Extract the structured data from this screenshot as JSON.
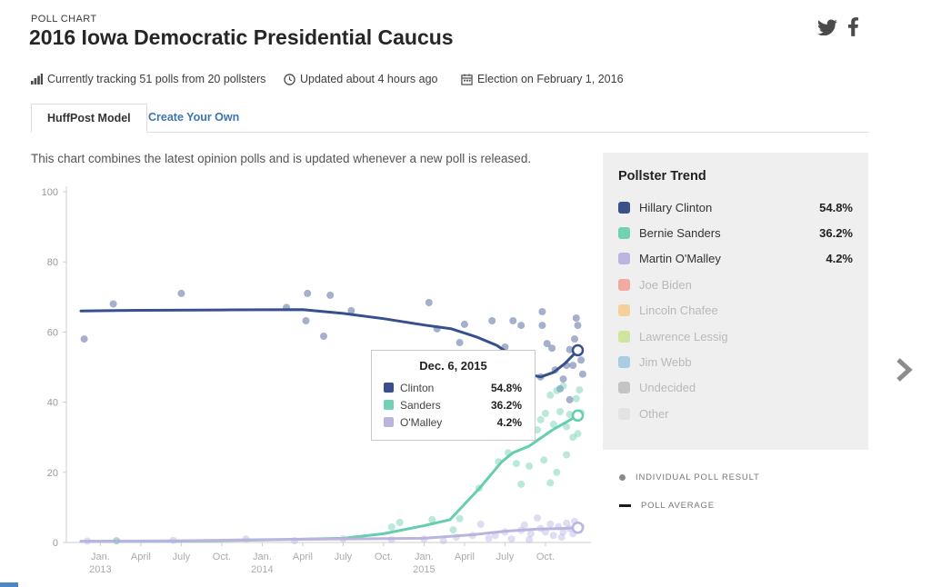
{
  "page": {
    "label": "POLL CHART",
    "title": "2016 Iowa Democratic Presidential Caucus"
  },
  "social": {
    "icons": [
      "twitter",
      "facebook"
    ]
  },
  "meta": [
    {
      "icon": "bar-chart-icon",
      "text": "Currently tracking 51 polls from 20 pollsters"
    },
    {
      "icon": "clock-icon",
      "text": "Updated about 4 hours ago"
    },
    {
      "icon": "calendar-icon",
      "text": "Election on February 1, 2016"
    }
  ],
  "tabs": [
    {
      "label": "HuffPost Model",
      "active": true
    },
    {
      "label": "Create Your Own",
      "active": false
    }
  ],
  "description": "This chart combines the latest opinion polls and is updated whenever a new poll is released.",
  "sidebar": {
    "title": "Pollster Trend",
    "entries": [
      {
        "label": "Hillary Clinton",
        "value": "54.8%",
        "color": "#3b508a",
        "active": true
      },
      {
        "label": "Bernie Sanders",
        "value": "36.2%",
        "color": "#72d1b4",
        "active": true
      },
      {
        "label": "Martin O'Malley",
        "value": "4.2%",
        "color": "#b9b4e0",
        "active": true
      },
      {
        "label": "Joe Biden",
        "value": "",
        "color": "#f2a9a2",
        "active": false
      },
      {
        "label": "Lincoln Chafee",
        "value": "",
        "color": "#f5cf9c",
        "active": false
      },
      {
        "label": "Lawrence Lessig",
        "value": "",
        "color": "#cfe49c",
        "active": false
      },
      {
        "label": "Jim Webb",
        "value": "",
        "color": "#a9cee3",
        "active": false
      },
      {
        "label": "Undecided",
        "value": "",
        "color": "#c4c4c4",
        "active": false
      },
      {
        "label": "Other",
        "value": "",
        "color": "#e3e3e3",
        "active": false
      }
    ]
  },
  "chart_notes": [
    {
      "marker": "dot",
      "label": "INDIVIDUAL POLL RESULT"
    },
    {
      "marker": "dash",
      "label": "POLL AVERAGE"
    }
  ],
  "tooltip": {
    "title": "Dec. 6, 2015",
    "rows": [
      {
        "label": "Clinton",
        "value": "54.8%",
        "color": "#3b508a"
      },
      {
        "label": "Sanders",
        "value": "36.2%",
        "color": "#72d1b4"
      },
      {
        "label": "O'Malley",
        "value": "4.2%",
        "color": "#b9b4e0"
      }
    ]
  },
  "chart_data": {
    "type": "line",
    "title": "",
    "xlabel": "",
    "ylabel": "",
    "x_range": [
      2012.79,
      2016.02
    ],
    "y_range": [
      0,
      100
    ],
    "y_ticks": [
      0,
      20,
      40,
      60,
      80,
      100
    ],
    "x_ticks": [
      {
        "t": 2013.0,
        "label": "Jan.",
        "year": "2013"
      },
      {
        "t": 2013.25,
        "label": "April",
        "year": ""
      },
      {
        "t": 2013.5,
        "label": "July",
        "year": ""
      },
      {
        "t": 2013.75,
        "label": "Oct.",
        "year": ""
      },
      {
        "t": 2014.0,
        "label": "Jan.",
        "year": "2014"
      },
      {
        "t": 2014.25,
        "label": "April",
        "year": ""
      },
      {
        "t": 2014.5,
        "label": "July",
        "year": ""
      },
      {
        "t": 2014.75,
        "label": "Oct.",
        "year": ""
      },
      {
        "t": 2015.0,
        "label": "Jan.",
        "year": "2015"
      },
      {
        "t": 2015.25,
        "label": "April",
        "year": ""
      },
      {
        "t": 2015.5,
        "label": "July",
        "year": ""
      },
      {
        "t": 2015.75,
        "label": "Oct.",
        "year": ""
      }
    ],
    "grid": false,
    "legend_position": "right",
    "series": [
      {
        "name": "Hillary Clinton",
        "color": "#36508e",
        "end_value": 54.8,
        "trend": [
          [
            2012.88,
            66
          ],
          [
            2013.25,
            66.2
          ],
          [
            2013.75,
            66.3
          ],
          [
            2014.25,
            66.4
          ],
          [
            2014.5,
            65.3
          ],
          [
            2014.75,
            63.8
          ],
          [
            2015.0,
            62.0
          ],
          [
            2015.17,
            60.9
          ],
          [
            2015.33,
            58.5
          ],
          [
            2015.45,
            56.2
          ],
          [
            2015.55,
            53.0
          ],
          [
            2015.67,
            47.7
          ],
          [
            2015.72,
            47.2
          ],
          [
            2015.8,
            48.5
          ],
          [
            2015.87,
            51.0
          ],
          [
            2015.95,
            54.8
          ]
        ],
        "polls": [
          [
            2012.9,
            58
          ],
          [
            2013.08,
            68
          ],
          [
            2013.5,
            71
          ],
          [
            2014.15,
            67
          ],
          [
            2014.28,
            71
          ],
          [
            2014.27,
            63.2
          ],
          [
            2014.38,
            58.8
          ],
          [
            2014.42,
            70.5
          ],
          [
            2014.55,
            66.1
          ],
          [
            2015.03,
            68.4
          ],
          [
            2015.08,
            60.9
          ],
          [
            2015.25,
            62.2
          ],
          [
            2015.22,
            57
          ],
          [
            2015.42,
            63.2
          ],
          [
            2015.5,
            55.7
          ],
          [
            2015.55,
            63.2
          ],
          [
            2015.6,
            61.9
          ],
          [
            2015.73,
            65.8
          ],
          [
            2015.73,
            61.9
          ],
          [
            2015.76,
            56.7
          ],
          [
            2015.79,
            55.4
          ],
          [
            2015.81,
            49.2
          ],
          [
            2015.72,
            47.2
          ],
          [
            2015.84,
            43.8
          ],
          [
            2015.86,
            46.6
          ],
          [
            2015.88,
            50.5
          ],
          [
            2015.9,
            40.7
          ],
          [
            2015.9,
            55
          ],
          [
            2015.92,
            50.5
          ],
          [
            2015.93,
            58
          ],
          [
            2015.94,
            64
          ],
          [
            2015.95,
            61.9
          ],
          [
            2015.96,
            55
          ],
          [
            2015.97,
            52
          ],
          [
            2015.98,
            48
          ]
        ]
      },
      {
        "name": "Bernie Sanders",
        "color": "#66cdb0",
        "end_value": 36.2,
        "trend": [
          [
            2012.88,
            0.3
          ],
          [
            2013.5,
            0.4
          ],
          [
            2014.0,
            0.7
          ],
          [
            2014.5,
            1.2
          ],
          [
            2014.75,
            2.5
          ],
          [
            2015.0,
            4.8
          ],
          [
            2015.16,
            6.5
          ],
          [
            2015.34,
            15.3
          ],
          [
            2015.48,
            23.0
          ],
          [
            2015.55,
            25.6
          ],
          [
            2015.65,
            27.5
          ],
          [
            2015.79,
            32.0
          ],
          [
            2015.95,
            36.2
          ]
        ],
        "polls": [
          [
            2013.1,
            0.5
          ],
          [
            2014.8,
            4.4
          ],
          [
            2014.85,
            5.7
          ],
          [
            2015.05,
            6.5
          ],
          [
            2015.18,
            3.6
          ],
          [
            2015.22,
            6.8
          ],
          [
            2015.34,
            15.5
          ],
          [
            2015.46,
            23
          ],
          [
            2015.52,
            25.6
          ],
          [
            2015.57,
            22.5
          ],
          [
            2015.6,
            16.6
          ],
          [
            2015.65,
            21.8
          ],
          [
            2015.7,
            32.1
          ],
          [
            2015.72,
            35
          ],
          [
            2015.75,
            36.8
          ],
          [
            2015.78,
            42
          ],
          [
            2015.8,
            33.7
          ],
          [
            2015.82,
            43.3
          ],
          [
            2015.84,
            37.3
          ],
          [
            2015.86,
            44.6
          ],
          [
            2015.88,
            33
          ],
          [
            2015.9,
            36.5
          ],
          [
            2015.92,
            30
          ],
          [
            2015.88,
            25
          ],
          [
            2015.82,
            20
          ],
          [
            2015.78,
            17
          ],
          [
            2015.74,
            23.5
          ],
          [
            2015.94,
            41
          ],
          [
            2015.96,
            43.5
          ],
          [
            2015.95,
            31
          ],
          [
            2015.97,
            37
          ]
        ]
      },
      {
        "name": "Martin O'Malley",
        "color": "#b9b4e0",
        "end_value": 4.2,
        "trend": [
          [
            2012.88,
            0.3
          ],
          [
            2013.5,
            0.5
          ],
          [
            2014.0,
            0.8
          ],
          [
            2014.5,
            1.0
          ],
          [
            2015.0,
            1.2
          ],
          [
            2015.3,
            2.2
          ],
          [
            2015.5,
            3.2
          ],
          [
            2015.7,
            3.8
          ],
          [
            2015.85,
            4.0
          ],
          [
            2015.95,
            4.2
          ]
        ],
        "polls": [
          [
            2012.92,
            0.4
          ],
          [
            2013.1,
            0.5
          ],
          [
            2013.45,
            0.6
          ],
          [
            2013.9,
            1
          ],
          [
            2014.2,
            0.5
          ],
          [
            2014.5,
            1
          ],
          [
            2014.8,
            0.8
          ],
          [
            2015.0,
            1
          ],
          [
            2015.12,
            0.5
          ],
          [
            2015.2,
            1.5
          ],
          [
            2015.3,
            2
          ],
          [
            2015.35,
            5.2
          ],
          [
            2015.44,
            2
          ],
          [
            2015.5,
            3
          ],
          [
            2015.54,
            1
          ],
          [
            2015.6,
            3.5
          ],
          [
            2015.62,
            5
          ],
          [
            2015.66,
            2.5
          ],
          [
            2015.7,
            7
          ],
          [
            2015.72,
            4
          ],
          [
            2015.75,
            3
          ],
          [
            2015.78,
            5.2
          ],
          [
            2015.8,
            2
          ],
          [
            2015.83,
            4.5
          ],
          [
            2015.86,
            3
          ],
          [
            2015.88,
            5.5
          ],
          [
            2015.9,
            4
          ],
          [
            2015.92,
            2.5
          ],
          [
            2015.93,
            6
          ],
          [
            2015.95,
            3.5
          ],
          [
            2015.97,
            4.5
          ],
          [
            2015.85,
            1.5
          ],
          [
            2015.65,
            0.8
          ],
          [
            2015.4,
            1.2
          ]
        ]
      }
    ]
  }
}
